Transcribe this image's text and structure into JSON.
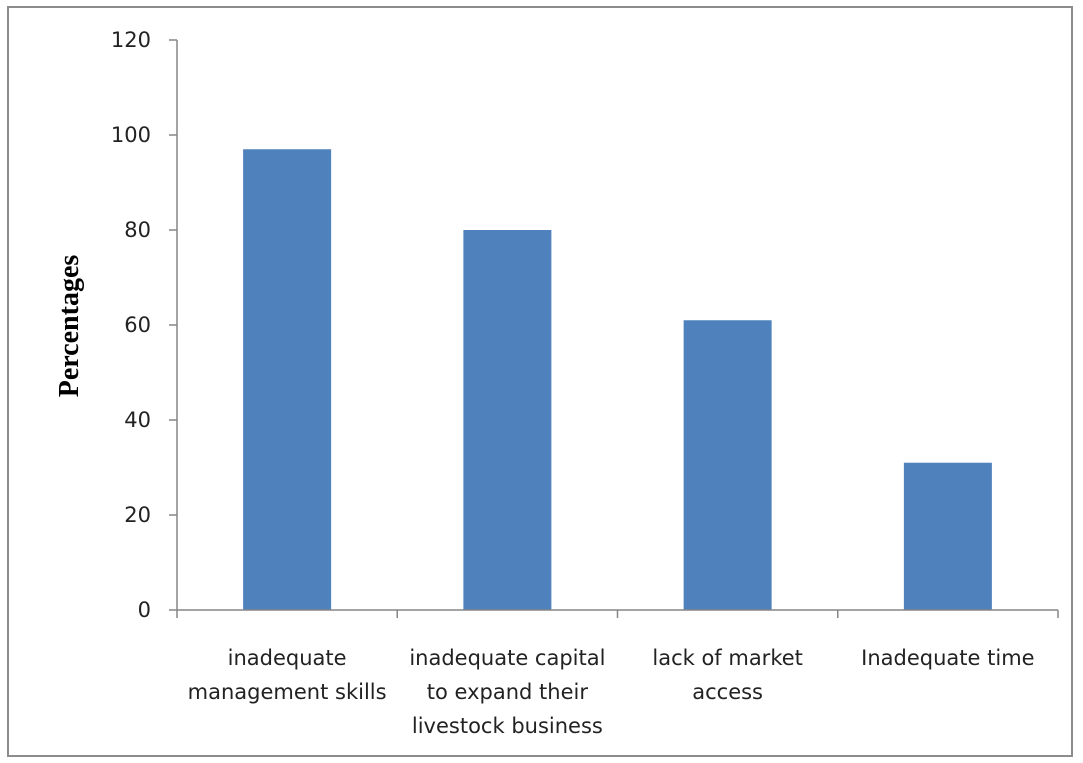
{
  "chart_data": {
    "type": "bar",
    "categories": [
      [
        "inadequate",
        "management skills"
      ],
      [
        "inadequate capital",
        "to expand their",
        "livestock business"
      ],
      [
        "lack of market",
        "access"
      ],
      [
        "Inadequate time"
      ]
    ],
    "values": [
      97,
      80,
      61,
      31
    ],
    "title": "",
    "xlabel": "",
    "ylabel": "Percentages",
    "ylim": [
      0,
      120
    ],
    "yticks": [
      0,
      20,
      40,
      60,
      80,
      100,
      120
    ],
    "grid": false,
    "legend": "none",
    "bar_color": "#4f81bd",
    "axis_color": "#868686"
  }
}
